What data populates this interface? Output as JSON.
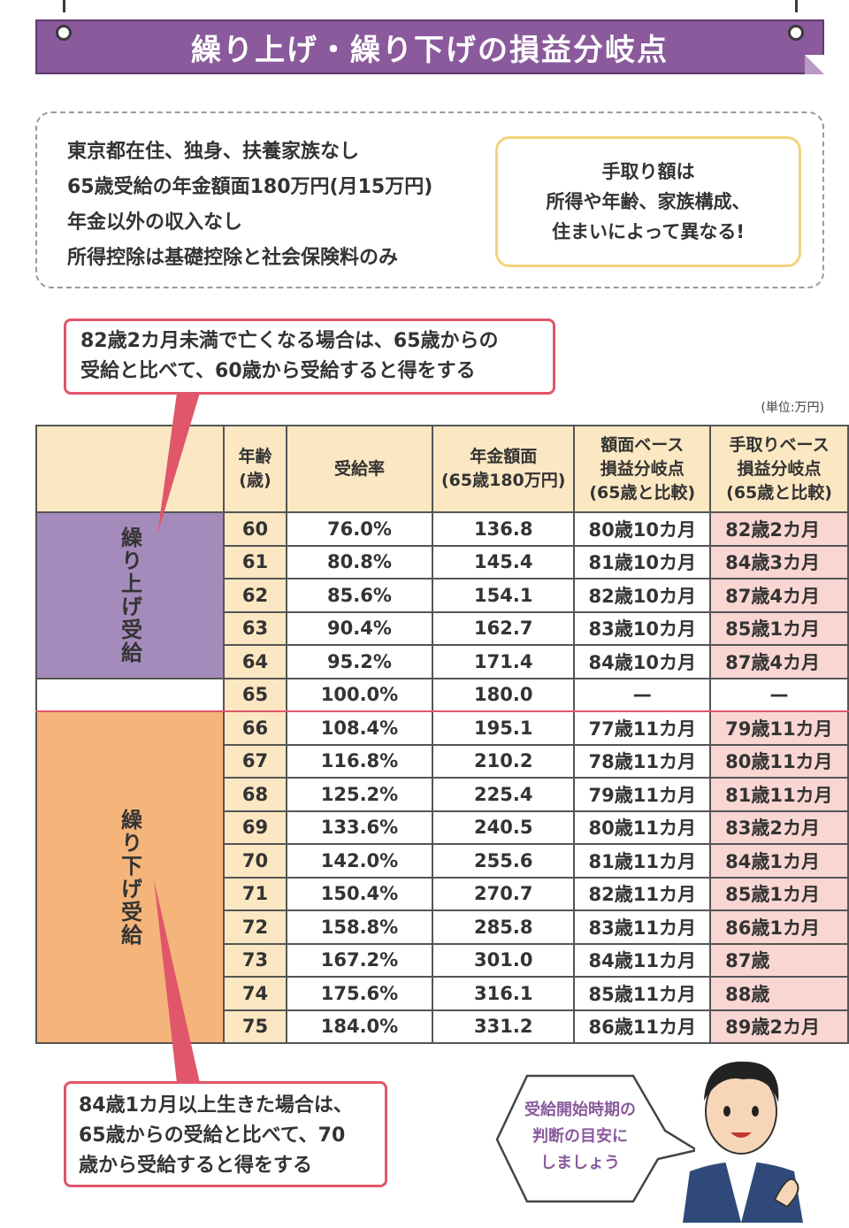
{
  "title": "繰り上げ・繰り下げの損益分岐点",
  "conditions": [
    "東京都在住、独身、扶養家族なし",
    "65歳受給の年金額面180万円(月15万円)",
    "年金以外の収入なし",
    "所得控除は基礎控除と社会保険料のみ"
  ],
  "note": [
    "手取り額は",
    "所得や年齢、家族構成、",
    "住まいによって異なる!"
  ],
  "callout_top": [
    "82歳2カ月未満で亡くなる場合は、65歳からの",
    "受給と比べて、60歳から受給すると得をする"
  ],
  "callout_bottom": [
    "84歳1カ月以上生きた場合は、",
    "65歳からの受給と比べて、70",
    "歳から受給すると得をする"
  ],
  "unit": "(単位:万円)",
  "table": {
    "headers": {
      "age": [
        "年齢",
        "(歳)"
      ],
      "rate": "受給率",
      "gross": [
        "年金額面",
        "(65歳180万円)"
      ],
      "gross_break": [
        "額面ベース",
        "損益分岐点",
        "(65歳と比較)"
      ],
      "net_break": [
        "手取りベース",
        "損益分岐点",
        "(65歳と比較)"
      ]
    },
    "group_early": "繰り上げ受給",
    "group_late": "繰り下げ受給",
    "rows": [
      {
        "age": "60",
        "rate": "76.0%",
        "gross": "136.8",
        "gb": "80歳10カ月",
        "nb": "82歳2カ月"
      },
      {
        "age": "61",
        "rate": "80.8%",
        "gross": "145.4",
        "gb": "81歳10カ月",
        "nb": "84歳3カ月"
      },
      {
        "age": "62",
        "rate": "85.6%",
        "gross": "154.1",
        "gb": "82歳10カ月",
        "nb": "87歳4カ月"
      },
      {
        "age": "63",
        "rate": "90.4%",
        "gross": "162.7",
        "gb": "83歳10カ月",
        "nb": "85歳1カ月"
      },
      {
        "age": "64",
        "rate": "95.2%",
        "gross": "171.4",
        "gb": "84歳10カ月",
        "nb": "87歳4カ月"
      },
      {
        "age": "65",
        "rate": "100.0%",
        "gross": "180.0",
        "gb": "—",
        "nb": "—"
      },
      {
        "age": "66",
        "rate": "108.4%",
        "gross": "195.1",
        "gb": "77歳11カ月",
        "nb": "79歳11カ月"
      },
      {
        "age": "67",
        "rate": "116.8%",
        "gross": "210.2",
        "gb": "78歳11カ月",
        "nb": "80歳11カ月"
      },
      {
        "age": "68",
        "rate": "125.2%",
        "gross": "225.4",
        "gb": "79歳11カ月",
        "nb": "81歳11カ月"
      },
      {
        "age": "69",
        "rate": "133.6%",
        "gross": "240.5",
        "gb": "80歳11カ月",
        "nb": "83歳2カ月"
      },
      {
        "age": "70",
        "rate": "142.0%",
        "gross": "255.6",
        "gb": "81歳11カ月",
        "nb": "84歳1カ月"
      },
      {
        "age": "71",
        "rate": "150.4%",
        "gross": "270.7",
        "gb": "82歳11カ月",
        "nb": "85歳1カ月"
      },
      {
        "age": "72",
        "rate": "158.8%",
        "gross": "285.8",
        "gb": "83歳11カ月",
        "nb": "86歳1カ月"
      },
      {
        "age": "73",
        "rate": "167.2%",
        "gross": "301.0",
        "gb": "84歳11カ月",
        "nb": "87歳"
      },
      {
        "age": "74",
        "rate": "175.6%",
        "gross": "316.1",
        "gb": "85歳11カ月",
        "nb": "88歳"
      },
      {
        "age": "75",
        "rate": "184.0%",
        "gross": "331.2",
        "gb": "86歳11カ月",
        "nb": "89歳2カ月"
      }
    ]
  },
  "bubble": [
    "受給開始時期の",
    "判断の目安に",
    "しましょう"
  ],
  "colors": {
    "banner": "#8a5a9c",
    "early": "#a58bbb",
    "late": "#f4b47a",
    "header": "#fbe7c2",
    "net": "#f9d6d2",
    "callout": "#e0566a",
    "note": "#f3d37a"
  }
}
